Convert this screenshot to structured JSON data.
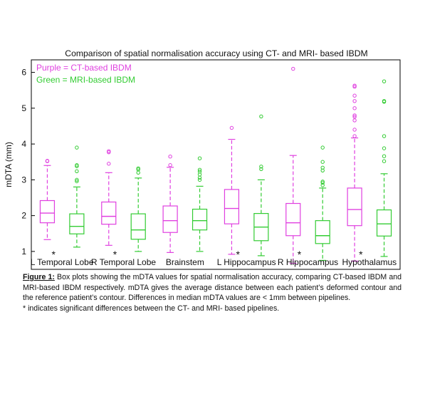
{
  "chart_data": {
    "type": "boxplot",
    "title": "Comparison of spatial normalisation accuracy using CT- and MRI- based IBDM",
    "ylabel": "mDTA (mm)",
    "xlabel": "",
    "ylim": [
      0.5,
      6.35
    ],
    "yticks": [
      "1",
      "2",
      "3",
      "4",
      "5",
      "6"
    ],
    "grid": false,
    "legend_position": "top-left",
    "legend": [
      {
        "text": "Purple = CT-based IBDM",
        "color": "#e040e0"
      },
      {
        "text": "Green = MRI-based IBDM",
        "color": "#33cc33"
      }
    ],
    "categories": [
      "L Temporal Lobe",
      "R Temporal Lobe",
      "Brainstem",
      "L Hippocampus",
      "R Hippocampus",
      "Hypothalamus"
    ],
    "significance_marker": "*",
    "significant": [
      true,
      true,
      false,
      true,
      true,
      true
    ],
    "series": [
      {
        "color": "#e040e0",
        "boxes": [
          {
            "min": 1.33,
            "q1": 1.8,
            "median": 2.07,
            "q3": 2.42,
            "max": 3.4,
            "outliers": [
              3.52,
              3.53
            ]
          },
          {
            "min": 1.17,
            "q1": 1.76,
            "median": 1.98,
            "q3": 2.38,
            "max": 3.2,
            "outliers": [
              3.45,
              3.77,
              3.8
            ]
          },
          {
            "min": 0.97,
            "q1": 1.53,
            "median": 1.86,
            "q3": 2.27,
            "max": 3.35,
            "outliers": [
              3.41,
              3.65
            ]
          },
          {
            "min": 0.92,
            "q1": 1.77,
            "median": 2.2,
            "q3": 2.73,
            "max": 4.13,
            "outliers": [
              4.45
            ]
          },
          {
            "min": 0.67,
            "q1": 1.44,
            "median": 1.8,
            "q3": 2.34,
            "max": 3.68,
            "outliers": [
              6.1
            ]
          },
          {
            "min": 0.73,
            "q1": 1.72,
            "median": 2.17,
            "q3": 2.77,
            "max": 4.17,
            "outliers": [
              4.22,
              4.4,
              4.66,
              4.76,
              4.8,
              5.0,
              5.2,
              5.35,
              5.6,
              5.63
            ]
          }
        ]
      },
      {
        "color": "#33cc33",
        "boxes": [
          {
            "min": 1.12,
            "q1": 1.49,
            "median": 1.7,
            "q3": 2.05,
            "max": 2.8,
            "outliers": [
              2.96,
              3.0,
              3.24,
              3.38,
              3.41,
              3.9
            ]
          },
          {
            "min": 1.0,
            "q1": 1.34,
            "median": 1.6,
            "q3": 2.05,
            "max": 3.05,
            "outliers": [
              3.2,
              3.29,
              3.32
            ]
          },
          {
            "min": 1.0,
            "q1": 1.6,
            "median": 1.86,
            "q3": 2.18,
            "max": 2.82,
            "outliers": [
              3.0,
              3.06,
              3.15,
              3.23,
              3.28,
              3.6
            ]
          },
          {
            "min": 0.88,
            "q1": 1.3,
            "median": 1.68,
            "q3": 2.06,
            "max": 3.0,
            "outliers": [
              3.3,
              3.37,
              4.77
            ]
          },
          {
            "min": 0.75,
            "q1": 1.22,
            "median": 1.44,
            "q3": 1.86,
            "max": 2.77,
            "outliers": [
              2.85,
              2.92,
              2.95,
              3.26,
              3.34,
              3.5,
              3.9
            ]
          },
          {
            "min": 0.86,
            "q1": 1.43,
            "median": 1.77,
            "q3": 2.16,
            "max": 3.17,
            "outliers": [
              3.52,
              3.66,
              3.88,
              4.22,
              5.18,
              5.2,
              5.75
            ]
          }
        ]
      }
    ]
  },
  "caption": {
    "label": "Figure 1:",
    "text": " Box plots showing the mDTA values for spatial normalisation accuracy, comparing CT-based IBDM and MRI-based IBDM respectively.  mDTA gives the average distance between each patient’s deformed contour and the reference patient’s contour. Differences in median mDTA values are < 1mm between pipelines.",
    "note": " * indicates significant differences between the CT- and MRI- based pipelines."
  }
}
